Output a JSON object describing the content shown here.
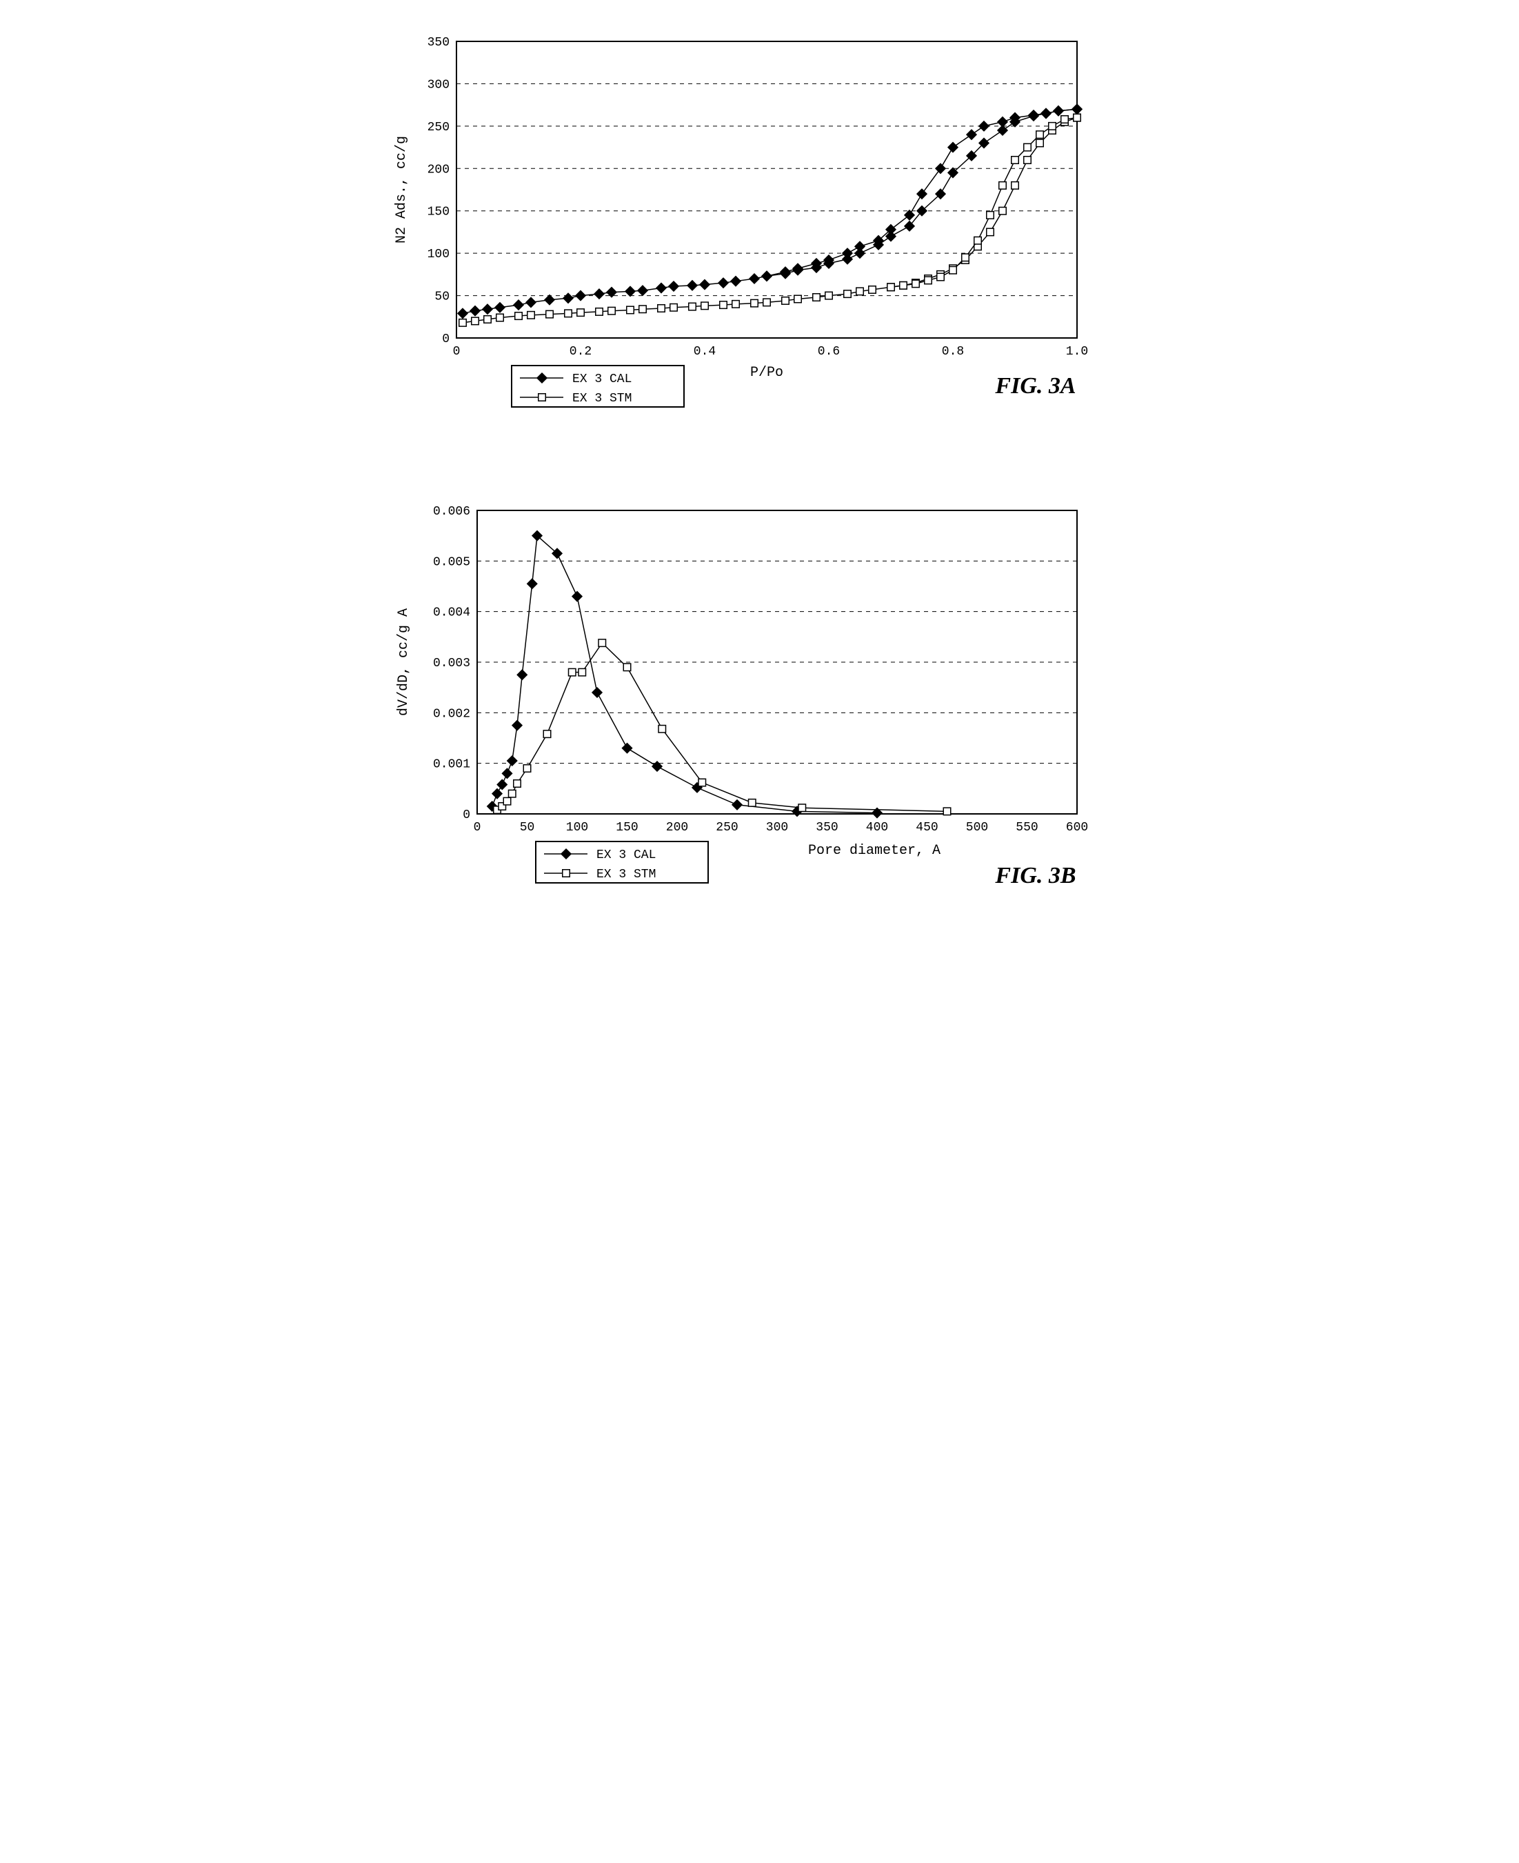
{
  "chartA": {
    "type": "line",
    "ylabel": "N2 Ads., cc/g",
    "xlabel": "P/Po",
    "fig_label": "FIG. 3A",
    "xlim": [
      0,
      1
    ],
    "ylim": [
      0,
      350
    ],
    "xtick_step": 0.2,
    "ytick_step": 50,
    "background_color": "#ffffff",
    "grid_color": "#000000",
    "axis_color": "#000000",
    "line_color": "#000000",
    "font_family": "Courier New",
    "tick_fontsize": 18,
    "label_fontsize": 20,
    "fig_label_fontsize": 34,
    "line_width": 1.5,
    "marker_size": 7,
    "grid_dash": "6,6",
    "series": [
      {
        "name": "EX 3 CAL",
        "marker": "diamond",
        "marker_fill": "#000000",
        "marker_stroke": "#000000",
        "data_ads": [
          [
            0.01,
            29
          ],
          [
            0.03,
            32
          ],
          [
            0.05,
            34
          ],
          [
            0.07,
            36
          ],
          [
            0.1,
            39
          ],
          [
            0.12,
            42
          ],
          [
            0.15,
            45
          ],
          [
            0.18,
            47
          ],
          [
            0.2,
            50
          ],
          [
            0.23,
            52
          ],
          [
            0.25,
            54
          ],
          [
            0.28,
            55
          ],
          [
            0.3,
            56
          ],
          [
            0.33,
            59
          ],
          [
            0.35,
            61
          ],
          [
            0.38,
            62
          ],
          [
            0.4,
            63
          ],
          [
            0.43,
            65
          ],
          [
            0.45,
            67
          ],
          [
            0.48,
            70
          ],
          [
            0.5,
            73
          ],
          [
            0.53,
            76
          ],
          [
            0.55,
            80
          ],
          [
            0.58,
            83
          ],
          [
            0.6,
            88
          ],
          [
            0.63,
            93
          ],
          [
            0.65,
            100
          ],
          [
            0.68,
            110
          ],
          [
            0.7,
            120
          ],
          [
            0.73,
            132
          ],
          [
            0.75,
            150
          ],
          [
            0.78,
            170
          ],
          [
            0.8,
            195
          ],
          [
            0.83,
            215
          ],
          [
            0.85,
            230
          ],
          [
            0.88,
            245
          ],
          [
            0.9,
            255
          ],
          [
            0.93,
            262
          ],
          [
            0.95,
            265
          ],
          [
            0.97,
            268
          ],
          [
            1.0,
            270
          ]
        ],
        "data_des": [
          [
            1.0,
            270
          ],
          [
            0.97,
            268
          ],
          [
            0.95,
            265
          ],
          [
            0.93,
            263
          ],
          [
            0.9,
            260
          ],
          [
            0.88,
            255
          ],
          [
            0.85,
            250
          ],
          [
            0.83,
            240
          ],
          [
            0.8,
            225
          ],
          [
            0.78,
            200
          ],
          [
            0.75,
            170
          ],
          [
            0.73,
            145
          ],
          [
            0.7,
            128
          ],
          [
            0.68,
            115
          ],
          [
            0.65,
            108
          ],
          [
            0.63,
            100
          ],
          [
            0.6,
            92
          ],
          [
            0.58,
            88
          ],
          [
            0.55,
            82
          ],
          [
            0.53,
            78
          ],
          [
            0.5,
            73
          ]
        ]
      },
      {
        "name": "EX 3 STM",
        "marker": "square",
        "marker_fill": "#ffffff",
        "marker_stroke": "#000000",
        "data_ads": [
          [
            0.01,
            18
          ],
          [
            0.03,
            20
          ],
          [
            0.05,
            22
          ],
          [
            0.07,
            24
          ],
          [
            0.1,
            26
          ],
          [
            0.12,
            27
          ],
          [
            0.15,
            28
          ],
          [
            0.18,
            29
          ],
          [
            0.2,
            30
          ],
          [
            0.23,
            31
          ],
          [
            0.25,
            32
          ],
          [
            0.28,
            33
          ],
          [
            0.3,
            34
          ],
          [
            0.33,
            35
          ],
          [
            0.35,
            36
          ],
          [
            0.38,
            37
          ],
          [
            0.4,
            38
          ],
          [
            0.43,
            39
          ],
          [
            0.45,
            40
          ],
          [
            0.48,
            41
          ],
          [
            0.5,
            42
          ],
          [
            0.53,
            44
          ],
          [
            0.55,
            46
          ],
          [
            0.58,
            48
          ],
          [
            0.6,
            50
          ],
          [
            0.63,
            52
          ],
          [
            0.65,
            55
          ],
          [
            0.67,
            57
          ],
          [
            0.7,
            60
          ],
          [
            0.72,
            62
          ],
          [
            0.74,
            65
          ],
          [
            0.76,
            70
          ],
          [
            0.78,
            75
          ],
          [
            0.8,
            82
          ],
          [
            0.82,
            92
          ],
          [
            0.84,
            108
          ],
          [
            0.86,
            125
          ],
          [
            0.88,
            150
          ],
          [
            0.9,
            180
          ],
          [
            0.92,
            210
          ],
          [
            0.94,
            230
          ],
          [
            0.96,
            245
          ],
          [
            0.98,
            255
          ],
          [
            1.0,
            260
          ]
        ],
        "data_des": [
          [
            1.0,
            260
          ],
          [
            0.98,
            258
          ],
          [
            0.96,
            250
          ],
          [
            0.94,
            240
          ],
          [
            0.92,
            225
          ],
          [
            0.9,
            210
          ],
          [
            0.88,
            180
          ],
          [
            0.86,
            145
          ],
          [
            0.84,
            115
          ],
          [
            0.82,
            95
          ],
          [
            0.8,
            80
          ],
          [
            0.78,
            72
          ],
          [
            0.76,
            68
          ],
          [
            0.74,
            64
          ],
          [
            0.72,
            62
          ],
          [
            0.7,
            60
          ]
        ]
      }
    ],
    "legend": {
      "items": [
        "EX 3 CAL",
        "EX 3 STM"
      ]
    }
  },
  "chartB": {
    "type": "line",
    "ylabel": "dV/dD, cc/g A",
    "xlabel": "Pore diameter, A",
    "fig_label": "FIG. 3B",
    "xlim": [
      0,
      600
    ],
    "ylim": [
      0,
      0.006
    ],
    "xtick_step": 50,
    "ytick_step": 0.001,
    "background_color": "#ffffff",
    "grid_color": "#000000",
    "axis_color": "#000000",
    "line_color": "#000000",
    "font_family": "Courier New",
    "tick_fontsize": 18,
    "label_fontsize": 20,
    "fig_label_fontsize": 34,
    "line_width": 1.5,
    "marker_size": 7,
    "grid_dash": "6,6",
    "series": [
      {
        "name": "EX 3 CAL",
        "marker": "diamond",
        "marker_fill": "#000000",
        "marker_stroke": "#000000",
        "data": [
          [
            15,
            0.00015
          ],
          [
            20,
            0.0004
          ],
          [
            25,
            0.00058
          ],
          [
            30,
            0.0008
          ],
          [
            35,
            0.00105
          ],
          [
            40,
            0.00175
          ],
          [
            45,
            0.00275
          ],
          [
            55,
            0.00455
          ],
          [
            60,
            0.0055
          ],
          [
            80,
            0.00515
          ],
          [
            100,
            0.0043
          ],
          [
            120,
            0.0024
          ],
          [
            150,
            0.0013
          ],
          [
            180,
            0.00094
          ],
          [
            220,
            0.00052
          ],
          [
            260,
            0.00018
          ],
          [
            320,
            5e-05
          ],
          [
            400,
            2e-05
          ]
        ]
      },
      {
        "name": "EX 3 STM",
        "marker": "square",
        "marker_fill": "#ffffff",
        "marker_stroke": "#000000",
        "data": [
          [
            20,
            8e-05
          ],
          [
            25,
            0.00015
          ],
          [
            30,
            0.00025
          ],
          [
            35,
            0.0004
          ],
          [
            40,
            0.0006
          ],
          [
            50,
            0.0009
          ],
          [
            70,
            0.00158
          ],
          [
            95,
            0.0028
          ],
          [
            105,
            0.0028
          ],
          [
            125,
            0.00338
          ],
          [
            150,
            0.0029
          ],
          [
            185,
            0.00168
          ],
          [
            225,
            0.00062
          ],
          [
            275,
            0.00022
          ],
          [
            325,
            0.00012
          ],
          [
            470,
            5e-05
          ]
        ]
      }
    ],
    "legend": {
      "items": [
        "EX 3 CAL",
        "EX 3 STM"
      ]
    }
  }
}
